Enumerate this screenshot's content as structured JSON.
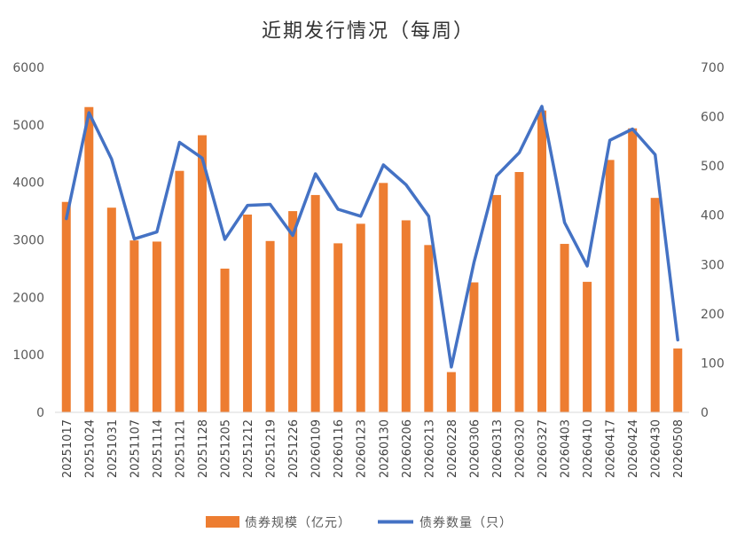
{
  "chart_data": {
    "type": "bar+line",
    "title": "近期发行情况（每周）",
    "categories": [
      "20251017",
      "20251024",
      "20251031",
      "20251107",
      "20251114",
      "20251121",
      "20251128",
      "20251205",
      "20251212",
      "20251219",
      "20251226",
      "20260109",
      "20260116",
      "20260123",
      "20260130",
      "20260206",
      "20260213",
      "20260228",
      "20260306",
      "20260313",
      "20260320",
      "20260327",
      "20260403",
      "20260410",
      "20260417",
      "20260424",
      "20260430",
      "20260508"
    ],
    "series": [
      {
        "name": "债券规模（亿元）",
        "type": "bar",
        "axis": "left",
        "color": "#ED7D31",
        "values": [
          3660,
          5310,
          3560,
          2990,
          2970,
          4200,
          4820,
          2500,
          3440,
          2980,
          3500,
          3780,
          2940,
          3280,
          3990,
          3340,
          2910,
          700,
          2260,
          3780,
          4180,
          5250,
          2930,
          2270,
          4390,
          4940,
          3730,
          1110
        ]
      },
      {
        "name": "债券数量（只）",
        "type": "line",
        "axis": "right",
        "color": "#4472C4",
        "values": [
          393,
          608,
          514,
          352,
          366,
          548,
          516,
          351,
          420,
          422,
          359,
          484,
          412,
          398,
          502,
          462,
          398,
          92,
          304,
          480,
          527,
          621,
          385,
          297,
          552,
          575,
          523,
          147
        ]
      }
    ],
    "y_left": {
      "min": 0,
      "max": 6000,
      "ticks": [
        "0",
        "1000",
        "2000",
        "3000",
        "4000",
        "5000",
        "6000"
      ]
    },
    "y_right": {
      "min": 0,
      "max": 700,
      "ticks": [
        "0",
        "100",
        "200",
        "300",
        "400",
        "500",
        "600",
        "700"
      ]
    },
    "grid": false,
    "legend": "bottom"
  }
}
